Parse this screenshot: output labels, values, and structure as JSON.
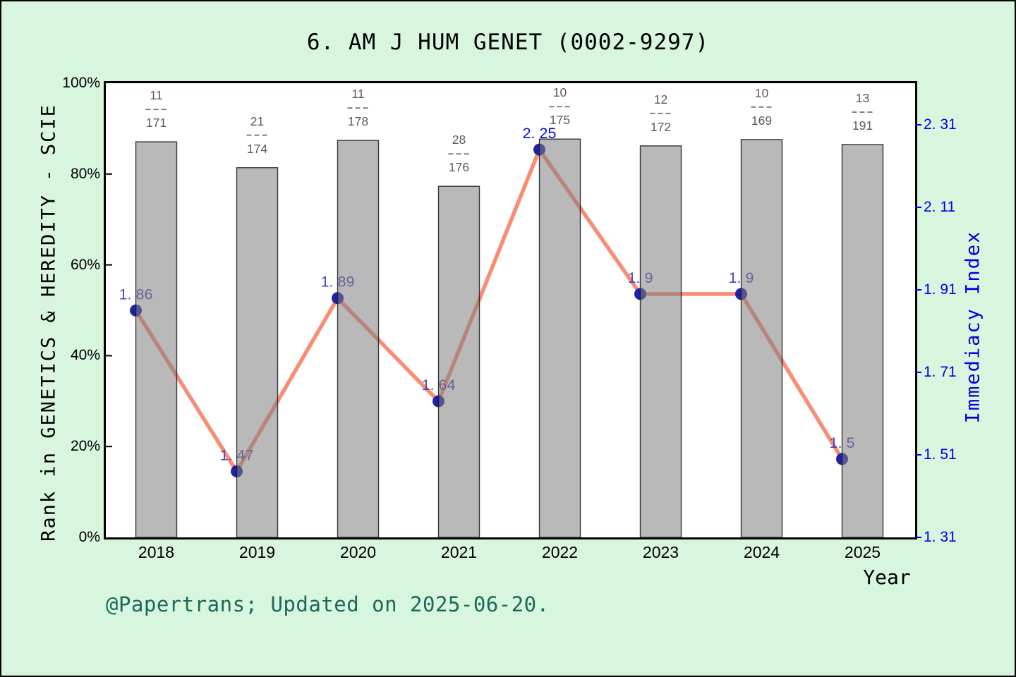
{
  "title": "6. AM J HUM GENET (0002-9297)",
  "footer": "@Papertrans; Updated on 2025-06-20.",
  "colors": {
    "background": "#d8f5de",
    "plot_background": "#ffffff",
    "frame": "#000000",
    "footer_text": "#1b685c",
    "right_axis_blue": "#0000e0",
    "fraction_gray": "#5a5a5a"
  },
  "chart_data": {
    "type": "bar+line",
    "categories": [
      "2018",
      "2019",
      "2020",
      "2021",
      "2022",
      "2023",
      "2024",
      "2025"
    ],
    "bars": {
      "name": "Rank in GENETICS & HEREDITY - SCIE (rank / total journals)",
      "fractions": [
        {
          "num": "11",
          "den": "171"
        },
        {
          "num": "21",
          "den": "174"
        },
        {
          "num": "11",
          "den": "178"
        },
        {
          "num": "28",
          "den": "176"
        },
        {
          "num": "10",
          "den": "175"
        },
        {
          "num": "12",
          "den": "172"
        },
        {
          "num": "10",
          "den": "169"
        },
        {
          "num": "13",
          "den": "191"
        }
      ],
      "height_pct": [
        87.1,
        81.4,
        87.4,
        77.3,
        87.7,
        86.2,
        87.6,
        86.5
      ],
      "fill": "#7f7f7f",
      "fill_opacity": 0.55,
      "border": "#1a1a1a"
    },
    "line": {
      "name": "Immediacy Index",
      "values": [
        1.86,
        1.47,
        1.89,
        1.64,
        2.25,
        1.9,
        1.9,
        1.5
      ],
      "labels": [
        "1. 86",
        "1. 47",
        "1. 89",
        "1. 64",
        "2. 25",
        "1. 9",
        "1. 9",
        "1. 5"
      ],
      "highlight_index": 4,
      "color": "#fa8c74",
      "point_color": "#2121a8",
      "label_color": "#4646bb",
      "highlight_label_color": "#0009e6"
    },
    "left_axis": {
      "label": "Rank in GENETICS & HEREDITY - SCIE",
      "ticks": [
        "0%",
        "20%",
        "40%",
        "60%",
        "80%",
        "100%"
      ],
      "range": [
        0,
        100
      ],
      "grid": false
    },
    "right_axis": {
      "label": "Immediacy Index",
      "ticks": [
        "1. 31",
        "1. 51",
        "1. 71",
        "1. 91",
        "2. 11",
        "2. 31"
      ],
      "tick_values": [
        1.31,
        1.51,
        1.71,
        1.91,
        2.11,
        2.31
      ]
    },
    "x_axis": {
      "label": "Year"
    }
  }
}
